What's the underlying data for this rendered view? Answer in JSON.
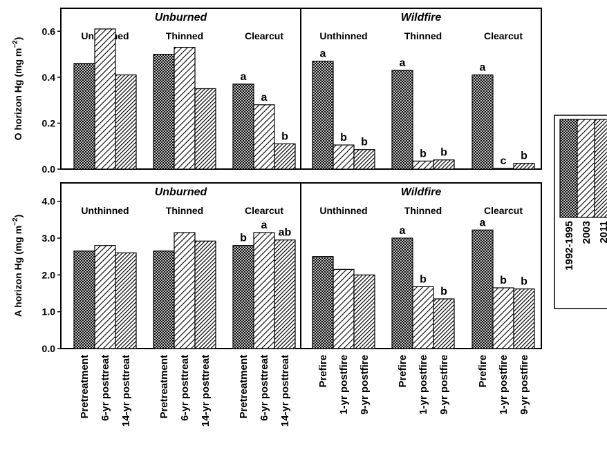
{
  "chart_data": {
    "type": "bar",
    "panels": [
      {
        "ylabel_main": "O horizon Hg (mg m",
        "ylabel_sup": "−2",
        "ylabel_end": ")",
        "ylim": [
          0,
          0.7
        ],
        "yticks": [
          "0.0",
          "0.2",
          "0.4",
          "0.6"
        ],
        "ytick_values": [
          0,
          0.2,
          0.4,
          0.6
        ],
        "sections": [
          {
            "title": "Unburned",
            "groups": [
              {
                "name": "Unthinned",
                "values": [
                  0.46,
                  0.61,
                  0.41
                ],
                "letters": [
                  "",
                  "",
                  ""
                ]
              },
              {
                "name": "Thinned",
                "values": [
                  0.5,
                  0.53,
                  0.35
                ],
                "letters": [
                  "",
                  "",
                  ""
                ]
              },
              {
                "name": "Clearcut",
                "values": [
                  0.37,
                  0.28,
                  0.11
                ],
                "letters": [
                  "a",
                  "a",
                  "b"
                ]
              }
            ]
          },
          {
            "title": "Wildfire",
            "groups": [
              {
                "name": "Unthinned",
                "values": [
                  0.47,
                  0.105,
                  0.085
                ],
                "letters": [
                  "a",
                  "b",
                  "b"
                ]
              },
              {
                "name": "Thinned",
                "values": [
                  0.43,
                  0.035,
                  0.04
                ],
                "letters": [
                  "a",
                  "b",
                  "b"
                ]
              },
              {
                "name": "Clearcut",
                "values": [
                  0.41,
                  0.003,
                  0.025
                ],
                "letters": [
                  "a",
                  "c",
                  "b"
                ]
              }
            ]
          }
        ]
      },
      {
        "ylabel_main": "A horizon Hg (mg m",
        "ylabel_sup": "−2",
        "ylabel_end": ")",
        "ylim": [
          0,
          4.5
        ],
        "yticks": [
          "0.0",
          "1.0",
          "2.0",
          "3.0",
          "4.0"
        ],
        "ytick_values": [
          0,
          1,
          2,
          3,
          4
        ],
        "sections": [
          {
            "title": "Unburned",
            "groups": [
              {
                "name": "Unthinned",
                "values": [
                  2.65,
                  2.8,
                  2.6
                ],
                "letters": [
                  "",
                  "",
                  ""
                ]
              },
              {
                "name": "Thinned",
                "values": [
                  2.65,
                  3.15,
                  2.92
                ],
                "letters": [
                  "",
                  "",
                  ""
                ]
              },
              {
                "name": "Clearcut",
                "values": [
                  2.8,
                  3.15,
                  2.95
                ],
                "letters": [
                  "b",
                  "a",
                  "ab"
                ]
              }
            ]
          },
          {
            "title": "Wildfire",
            "groups": [
              {
                "name": "Unthinned",
                "values": [
                  2.5,
                  2.15,
                  2.0
                ],
                "letters": [
                  "",
                  "",
                  ""
                ]
              },
              {
                "name": "Thinned",
                "values": [
                  3.0,
                  1.68,
                  1.35
                ],
                "letters": [
                  "a",
                  "b",
                  "b"
                ]
              },
              {
                "name": "Clearcut",
                "values": [
                  3.22,
                  1.65,
                  1.62
                ],
                "letters": [
                  "a",
                  "b",
                  "b"
                ]
              }
            ]
          }
        ]
      }
    ],
    "x_tick_labels": [
      [
        "Pretreatment",
        "6-yr posttreat",
        "14-yr posttreat"
      ],
      [
        "Pretreatment",
        "6-yr posttreat",
        "14-yr posttreat"
      ],
      [
        "Pretreatment",
        "6-yr posttreat",
        "14-yr posttreat"
      ],
      [
        "Prefire",
        "1-yr postfire",
        "9-yr postfire"
      ],
      [
        "Prefire",
        "1-yr postfire",
        "9-yr postfire"
      ],
      [
        "Prefire",
        "1-yr postfire",
        "9-yr postfire"
      ]
    ],
    "legend": {
      "placement": "right",
      "entries": [
        "1992-1995",
        "2003",
        "2011"
      ]
    },
    "patterns": [
      "crosshatch",
      "wide-diagonal",
      "dense-diagonal"
    ]
  }
}
